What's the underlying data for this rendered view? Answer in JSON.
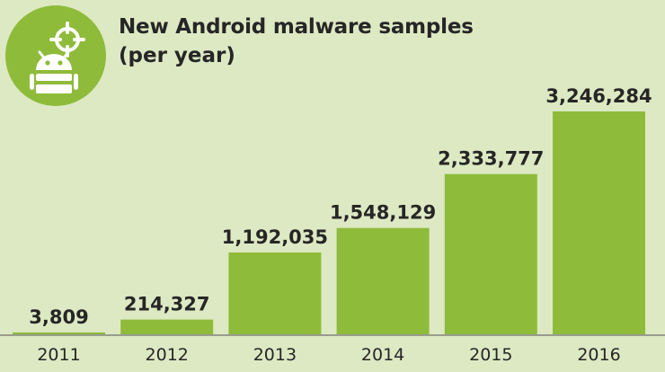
{
  "colors": {
    "background": "#dde9c3",
    "bar": "#8fbb3b",
    "badge": "#8fbb3b",
    "text": "#262626"
  },
  "icons": {
    "badge": "android-robot-crosshair-icon"
  },
  "chart_data": {
    "type": "bar",
    "title": "New Android malware samples",
    "subtitle": "(per year)",
    "categories": [
      "2011",
      "2012",
      "2013",
      "2014",
      "2015",
      "2016"
    ],
    "values": [
      3809,
      214327,
      1192035,
      1548129,
      2333777,
      3246284
    ],
    "value_labels": [
      "3,809",
      "214,327",
      "1,192,035",
      "1,548,129",
      "2,333,777",
      "3,246,284"
    ],
    "xlabel": "",
    "ylabel": "",
    "ylim": [
      0,
      3246284
    ],
    "grid": false,
    "legend": "none"
  }
}
